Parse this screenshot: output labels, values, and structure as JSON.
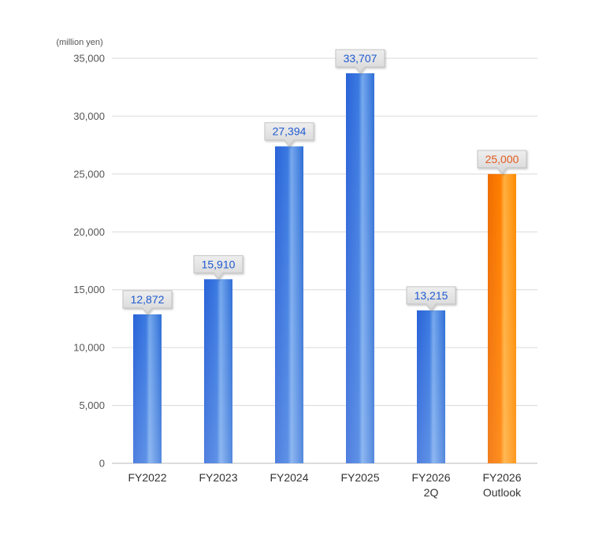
{
  "chart_data": {
    "type": "bar",
    "unit_label": "(million yen)",
    "categories": [
      [
        "FY2022"
      ],
      [
        "FY2023"
      ],
      [
        "FY2024"
      ],
      [
        "FY2025"
      ],
      [
        "FY2026",
        "2Q"
      ],
      [
        "FY2026",
        "Outlook"
      ]
    ],
    "values": [
      12872,
      15910,
      27394,
      33707,
      13215,
      25000
    ],
    "value_labels": [
      "12,872",
      "15,910",
      "27,394",
      "33,707",
      "13,215",
      "25,000"
    ],
    "ylim": [
      0,
      35000
    ],
    "yticks": [
      0,
      5000,
      10000,
      15000,
      20000,
      25000,
      30000,
      35000
    ],
    "ytick_labels": [
      "0",
      "5,000",
      "10,000",
      "15,000",
      "20,000",
      "25,000",
      "30,000",
      "35,000"
    ],
    "grid": true,
    "bar_colors": [
      "#2f6fd6",
      "#2f6fd6",
      "#2f6fd6",
      "#2f6fd6",
      "#2f6fd6",
      "#ff8a00"
    ],
    "value_label_colors": [
      "#1f5bd1",
      "#1f5bd1",
      "#1f5bd1",
      "#1f5bd1",
      "#1f5bd1",
      "#e35b1f"
    ],
    "highlight_index": 5
  }
}
